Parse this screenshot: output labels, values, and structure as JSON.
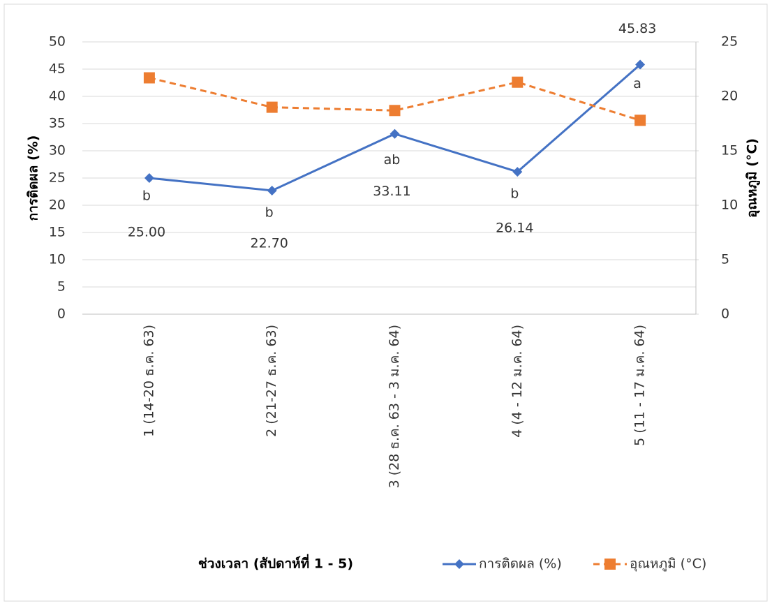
{
  "chart_data": {
    "type": "line",
    "xlabel": "ช่วงเวลา (สัปดาห์ที่ 1 - 5)",
    "ylabel": "การติดผล (%)",
    "y2label": "อุณหภูมิ (°C)",
    "categories": [
      "1 (14-20 ธ.ค. 63)",
      "2 (21-27  ธ.ค. 63)",
      "3 (28 ธ.ค. 63 - 3 ม.ค. 64)",
      "4 (4 - 12 ม.ค. 64)",
      "5 (11 - 17 ม.ค. 64)"
    ],
    "series": [
      {
        "name": "การติดผล (%)",
        "color": "#4472c4",
        "marker": "diamond",
        "dashed": false,
        "values": [
          25.0,
          22.7,
          33.11,
          26.14,
          45.83
        ],
        "value_labels": [
          "25.00",
          "22.70",
          "33.11",
          "26.14",
          "45.83"
        ],
        "annotations": [
          "b",
          "b",
          "ab",
          "b",
          "a"
        ]
      },
      {
        "name": "อุณหภูมิ (°C)",
        "color": "#ed7d31",
        "marker": "square",
        "dashed": true,
        "axis": "y2",
        "values": [
          21.7,
          19.0,
          18.7,
          21.3,
          17.8
        ]
      }
    ],
    "ylim": [
      0,
      50
    ],
    "yticks": [
      0,
      5,
      10,
      15,
      20,
      25,
      30,
      35,
      40,
      45,
      50
    ],
    "y2lim": [
      0,
      25
    ],
    "y2ticks": [
      0,
      5,
      10,
      15,
      20,
      25
    ],
    "grid": true,
    "legend": "bottom"
  }
}
